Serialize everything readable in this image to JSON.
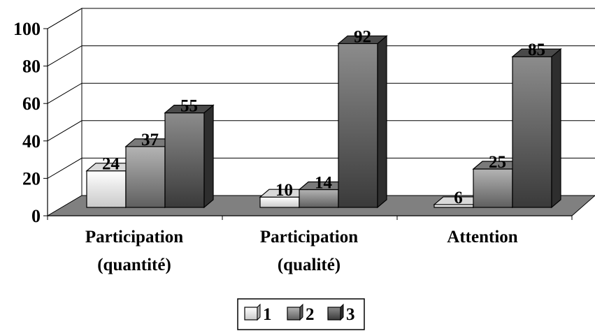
{
  "chart_data": {
    "type": "bar",
    "style": "3d-clustered-column",
    "categories": [
      [
        "Participation",
        "(quantité)"
      ],
      [
        "Participation",
        "(qualité)"
      ],
      [
        "Attention"
      ]
    ],
    "series": [
      {
        "name": "1",
        "values": [
          24,
          10,
          6
        ],
        "color": "#e6e6e6"
      },
      {
        "name": "2",
        "values": [
          37,
          14,
          25
        ],
        "color": "#9a9a9a"
      },
      {
        "name": "3",
        "values": [
          55,
          92,
          85
        ],
        "color": "#555555"
      }
    ],
    "y_ticks": [
      "0",
      "20",
      "40",
      "60",
      "80",
      "100"
    ],
    "ylim": [
      0,
      100
    ],
    "grid": true,
    "data_labels": true,
    "legend_position": "bottom-center",
    "floor_color": "#808080"
  }
}
